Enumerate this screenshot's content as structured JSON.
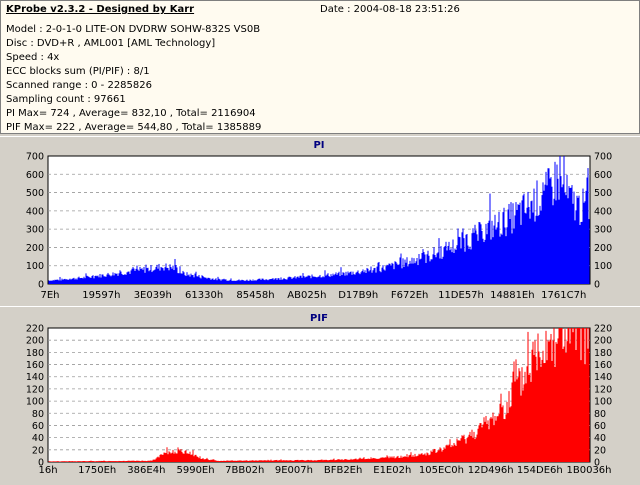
{
  "header": {
    "title": "KProbe v2.3.2 - Designed by Karr",
    "date": "Date : 2004-08-18 23:51:26",
    "lines": [
      "Model : 2-0-1-0 LITE-ON DVDRW SOHW-832S  VS0B",
      "Disc : DVD+R , AML001 [AML Technology]",
      "Speed : 4x",
      "ECC blocks sum (PI/PIF) : 8/1",
      "Scanned range : 0 - 2285826",
      "Sampling count : 97661",
      "PI Max= 724 , Average= 832,10 , Total= 2116904",
      "PIF Max= 222 , Average= 544,80 , Total= 1385889"
    ]
  },
  "chart_data": [
    {
      "type": "area",
      "title": "PI",
      "color": "#0000ff",
      "ylim": [
        0,
        700
      ],
      "yticks": [
        0,
        100,
        200,
        300,
        400,
        500,
        600,
        700
      ],
      "xtick_labels": [
        "7Eh",
        "19597h",
        "3E039h",
        "61330h",
        "85458h",
        "AB025h",
        "D17B9h",
        "F672Eh",
        "11DE57h",
        "14881Eh",
        "1761C7h"
      ],
      "grid": true,
      "profile": [
        [
          0,
          20
        ],
        [
          0.03,
          25
        ],
        [
          0.08,
          40
        ],
        [
          0.13,
          60
        ],
        [
          0.18,
          80
        ],
        [
          0.21,
          95
        ],
        [
          0.23,
          90
        ],
        [
          0.25,
          55
        ],
        [
          0.27,
          45
        ],
        [
          0.31,
          25
        ],
        [
          0.36,
          20
        ],
        [
          0.42,
          28
        ],
        [
          0.48,
          40
        ],
        [
          0.54,
          55
        ],
        [
          0.6,
          75
        ],
        [
          0.65,
          110
        ],
        [
          0.7,
          150
        ],
        [
          0.74,
          195
        ],
        [
          0.78,
          250
        ],
        [
          0.82,
          310
        ],
        [
          0.86,
          370
        ],
        [
          0.89,
          430
        ],
        [
          0.92,
          500
        ],
        [
          0.94,
          580
        ],
        [
          0.96,
          470
        ],
        [
          0.98,
          420
        ],
        [
          1.0,
          420
        ]
      ]
    },
    {
      "type": "area",
      "title": "PIF",
      "color": "#ff0000",
      "ylim": [
        0,
        220
      ],
      "yticks": [
        0,
        20,
        40,
        60,
        80,
        100,
        120,
        140,
        160,
        180,
        200,
        220
      ],
      "xtick_labels": [
        "16h",
        "1750Eh",
        "386E4h",
        "5990Eh",
        "7BB02h",
        "9E007h",
        "BFB2Eh",
        "E1E02h",
        "105EC0h",
        "12D496h",
        "154DE6h",
        "1B0036h"
      ],
      "grid": true,
      "profile": [
        [
          0,
          1
        ],
        [
          0.19,
          2
        ],
        [
          0.21,
          12
        ],
        [
          0.23,
          18
        ],
        [
          0.26,
          16
        ],
        [
          0.28,
          6
        ],
        [
          0.31,
          2
        ],
        [
          0.5,
          3
        ],
        [
          0.58,
          5
        ],
        [
          0.62,
          7
        ],
        [
          0.66,
          9
        ],
        [
          0.7,
          14
        ],
        [
          0.74,
          25
        ],
        [
          0.78,
          45
        ],
        [
          0.82,
          70
        ],
        [
          0.85,
          100
        ],
        [
          0.88,
          140
        ],
        [
          0.9,
          180
        ],
        [
          0.92,
          205
        ],
        [
          0.95,
          210
        ],
        [
          1.0,
          212
        ]
      ]
    }
  ]
}
